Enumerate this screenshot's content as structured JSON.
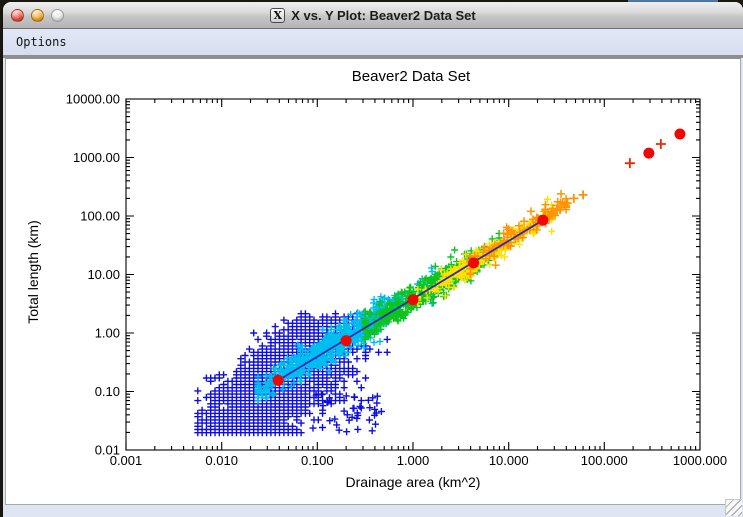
{
  "window": {
    "title": "X vs. Y Plot: Beaver2 Data Set",
    "icon_glyph": "X",
    "traffic_lights": {
      "close_color": "#ee4f43",
      "minimize_color": "#f5a623",
      "zoom_inactive_color": "#e4e4e4"
    }
  },
  "menubar": {
    "items": [
      {
        "label": "Options"
      }
    ]
  },
  "chart_data": {
    "type": "scatter",
    "title": "Beaver2 Data Set",
    "xlabel": "Drainage area (km^2)",
    "ylabel": "Total length (km)",
    "x_scale": "log",
    "y_scale": "log",
    "xlim": [
      0.001,
      1000
    ],
    "ylim": [
      0.01,
      10000
    ],
    "x_tick_labels": [
      "0.001",
      "0.010",
      "0.100",
      "1.000",
      "10.000",
      "100.000",
      "1000.000"
    ],
    "y_tick_labels": [
      "0.01",
      "0.10",
      "1.00",
      "10.00",
      "100.00",
      "1000.00",
      "10000.00"
    ],
    "grid": false,
    "legend": null,
    "power_law": {
      "slope": 1.0,
      "intercept_log10": 0.568
    },
    "fit_line": {
      "x1": 0.039,
      "y1": 0.155,
      "x2": 22.8,
      "y2": 85,
      "color": "#2a2ab4"
    },
    "binned_means": {
      "marker": "circle",
      "color": "#ee0800",
      "radius": 5.5,
      "points": [
        [
          0.039,
          0.155
        ],
        [
          0.2,
          0.74
        ],
        [
          1.0,
          3.7
        ],
        [
          4.3,
          15.8
        ],
        [
          22.8,
          85
        ],
        [
          292,
          1190
        ],
        [
          617,
          2520
        ]
      ]
    },
    "special_points": [
      {
        "x": 28,
        "y": 112,
        "color": "#ff9400",
        "size": 9
      },
      {
        "x": 32,
        "y": 125,
        "color": "#ff9400",
        "size": 9
      },
      {
        "x": 35,
        "y": 140,
        "color": "#ff9400",
        "size": 9
      },
      {
        "x": 41,
        "y": 165,
        "color": "#ff9400",
        "size": 9
      },
      {
        "x": 48,
        "y": 200,
        "color": "#ff9400",
        "size": 9
      },
      {
        "x": 60,
        "y": 230,
        "color": "#ff9400",
        "size": 9
      },
      {
        "x": 185,
        "y": 800,
        "color": "#f02800",
        "size": 10
      },
      {
        "x": 390,
        "y": 1700,
        "color": "#f02800",
        "size": 10
      }
    ],
    "scatter": {
      "seed": 42,
      "marker": "plus",
      "bands": [
        {
          "name": "blue",
          "color": "#0d0de0",
          "count": 2400,
          "stroke": 1.4,
          "size": 7,
          "mu_logx": -1.4,
          "sd_logx": 0.4,
          "clip_logx": [
            -2.25,
            -0.25
          ],
          "mu_res": -0.08,
          "sd_res": 0.4,
          "min_logy": -1.72,
          "max_logy": 0.32,
          "snap": [
            0.045,
            0.055
          ]
        },
        {
          "name": "blue-sparse",
          "color": "#0d0de0",
          "count": 40,
          "stroke": 1.4,
          "size": 7,
          "mode": "uniform",
          "logx": [
            -1.05,
            -0.3
          ],
          "logy": [
            -1.7,
            -1.05
          ]
        },
        {
          "name": "cyan",
          "color": "#00bdf0",
          "count": 650,
          "stroke": 1.4,
          "size": 7,
          "mu_logx": -0.8,
          "sd_logx": 0.42,
          "clip_logx": [
            -1.62,
            0.2
          ],
          "mu_res": 0.07,
          "sd_res": 0.13
        },
        {
          "name": "green",
          "color": "#0cc41e",
          "count": 430,
          "stroke": 1.4,
          "size": 7,
          "mu_logx": 0.15,
          "sd_logx": 0.4,
          "clip_logx": [
            -0.5,
            0.9
          ],
          "mu_res": 0.01,
          "sd_res": 0.12
        },
        {
          "name": "yellow",
          "color": "#ffe000",
          "count": 260,
          "stroke": 1.4,
          "size": 7,
          "mu_logx": 0.75,
          "sd_logx": 0.38,
          "clip_logx": [
            0.05,
            1.45
          ],
          "mu_res": 0.0,
          "sd_res": 0.09
        },
        {
          "name": "orange",
          "color": "#ff9400",
          "count": 95,
          "stroke": 1.5,
          "size": 8,
          "mu_logx": 1.15,
          "sd_logx": 0.33,
          "clip_logx": [
            0.6,
            1.6
          ],
          "mu_res": 0.04,
          "sd_res": 0.1
        }
      ]
    }
  }
}
